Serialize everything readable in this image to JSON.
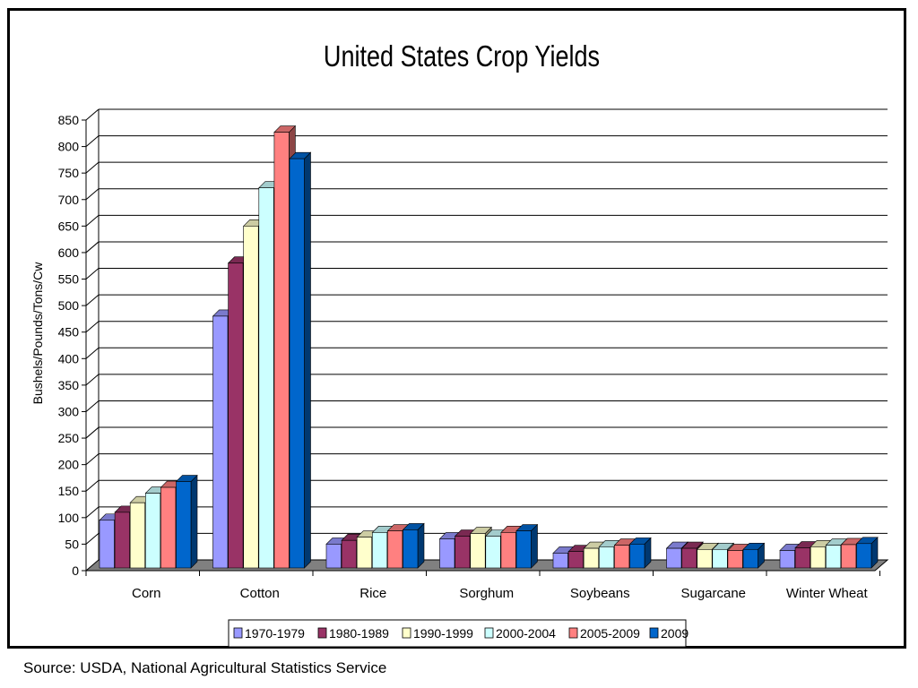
{
  "footer": {
    "source": "Source: USDA, National Agricultural Statistics Service"
  },
  "chart_data": {
    "type": "bar",
    "style": "3d-clustered",
    "title": "United States Crop Yields",
    "xlabel": "",
    "ylabel": "Bushels/Pounds/Tons/Cw",
    "ylim": [
      0,
      850
    ],
    "yticks": [
      0,
      50,
      100,
      150,
      200,
      250,
      300,
      350,
      400,
      450,
      500,
      550,
      600,
      650,
      700,
      750,
      800,
      850
    ],
    "grid": true,
    "legend_position": "bottom",
    "categories": [
      "Corn",
      "Cotton",
      "Rice",
      "Sorghum",
      "Soybeans",
      "Sugarcane",
      "Winter Wheat"
    ],
    "series": [
      {
        "name": "1970-1979",
        "color": "#9999FF",
        "values": [
          90,
          475,
          45,
          55,
          28,
          37,
          33
        ]
      },
      {
        "name": "1980-1989",
        "color": "#993366",
        "values": [
          105,
          575,
          52,
          60,
          31,
          37,
          38
        ]
      },
      {
        "name": "1990-1999",
        "color": "#FFFFCC",
        "values": [
          123,
          645,
          58,
          65,
          37,
          35,
          40
        ]
      },
      {
        "name": "2000-2004",
        "color": "#CCFFFF",
        "values": [
          141,
          717,
          67,
          60,
          40,
          35,
          43
        ]
      },
      {
        "name": "2005-2009",
        "color": "#FF8080",
        "values": [
          152,
          822,
          70,
          67,
          43,
          33,
          44
        ]
      },
      {
        "name": "2009",
        "color": "#0066CC",
        "values": [
          163,
          772,
          72,
          70,
          45,
          35,
          46
        ]
      }
    ]
  }
}
